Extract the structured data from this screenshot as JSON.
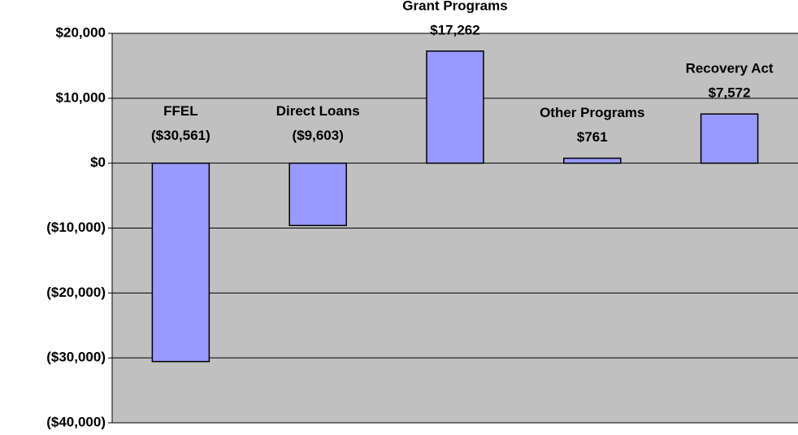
{
  "chart_data": {
    "type": "bar",
    "categories": [
      "FFEL",
      "Direct Loans",
      "Grant Programs",
      "Other Programs",
      "Recovery Act"
    ],
    "values": [
      -30561,
      -9603,
      17262,
      761,
      7572
    ],
    "value_labels": [
      "($30,561)",
      "($9,603)",
      "$17,262",
      "$761",
      "$7,572"
    ],
    "color": "#9999ff",
    "ylim": [
      -40000,
      20000
    ],
    "yticks": [
      {
        "value": -40000,
        "label": "($40,000)"
      },
      {
        "value": -30000,
        "label": "($30,000)"
      },
      {
        "value": -20000,
        "label": "($20,000)"
      },
      {
        "value": -10000,
        "label": "($10,000)"
      },
      {
        "value": 0,
        "label": "$0"
      },
      {
        "value": 10000,
        "label": "$10,000"
      },
      {
        "value": 20000,
        "label": "$20,000"
      }
    ],
    "grid": true
  }
}
